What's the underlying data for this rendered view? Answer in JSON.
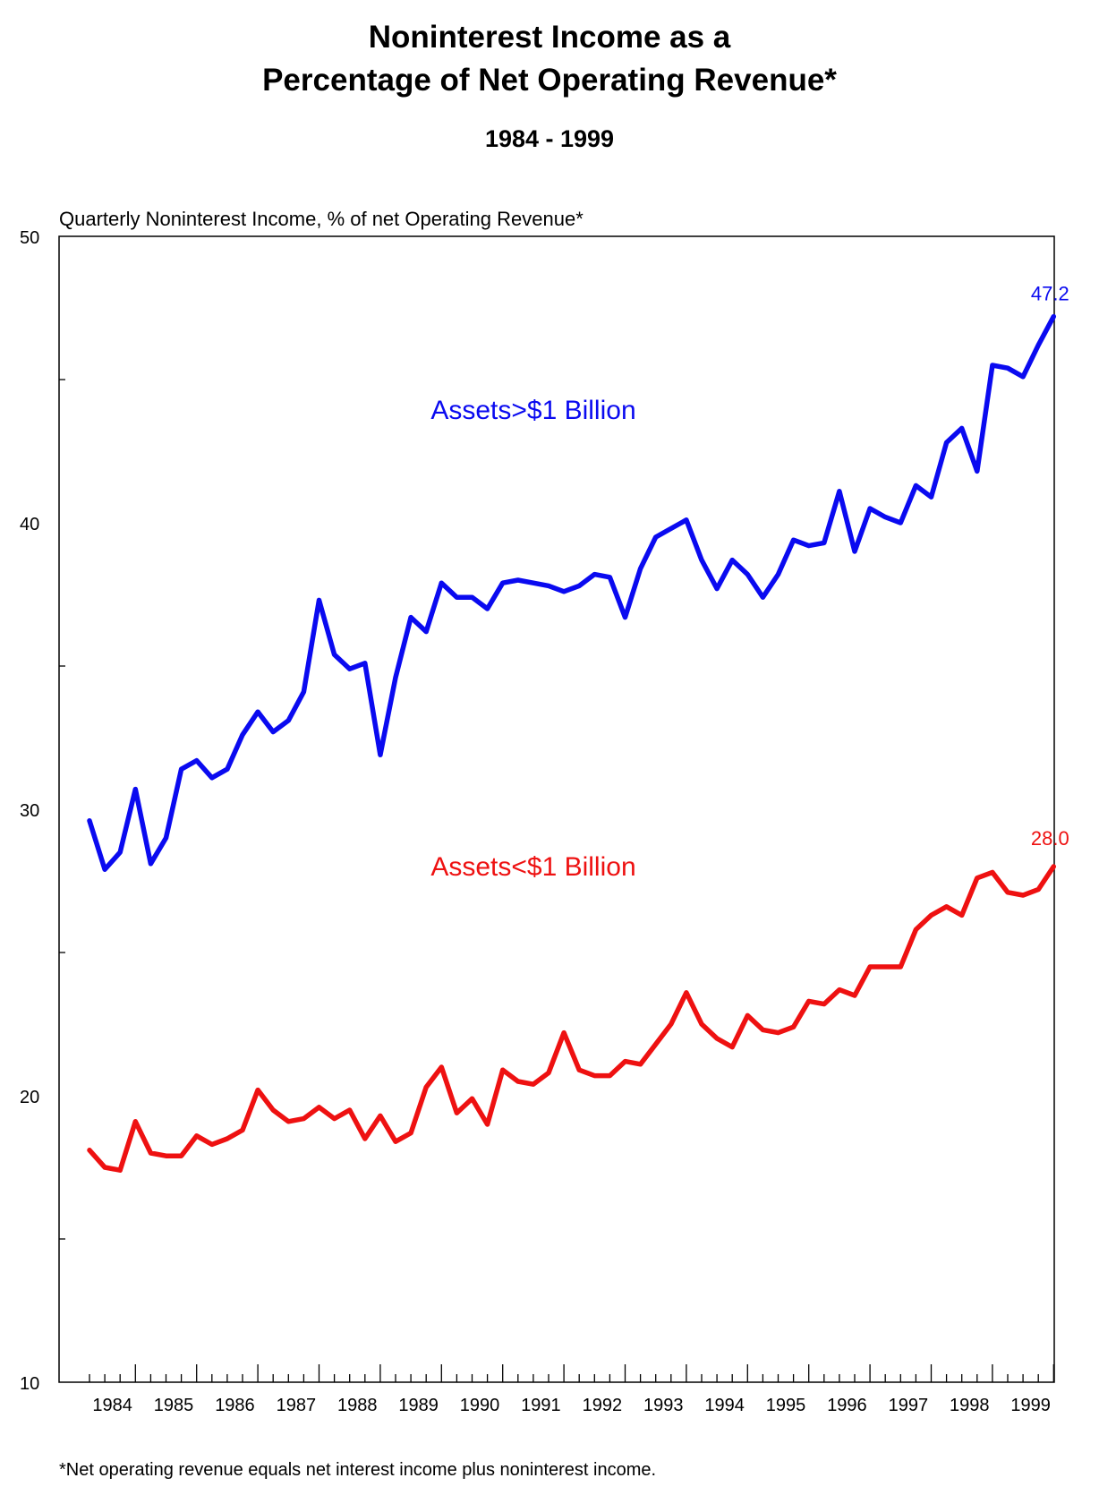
{
  "chart_data": {
    "type": "line",
    "title_line1": "Noninterest Income as a",
    "title_line2": "Percentage of Net Operating Revenue*",
    "subtitle": "1984 - 1999",
    "ylabel": "Quarterly Noninterest Income, % of net Operating Revenue*",
    "footnote": "*Net operating revenue equals net interest income plus noninterest income.",
    "ylim": [
      10,
      50
    ],
    "yticks": [
      10,
      20,
      30,
      40,
      50
    ],
    "years": [
      "1984",
      "1985",
      "1986",
      "1987",
      "1988",
      "1989",
      "1990",
      "1991",
      "1992",
      "1993",
      "1994",
      "1995",
      "1996",
      "1997",
      "1998",
      "1999"
    ],
    "series": [
      {
        "name": "Assets>$1 Billion",
        "color": "#0a0af0",
        "end_label": "47.2",
        "values": [
          29.6,
          27.9,
          28.5,
          30.7,
          28.1,
          29.0,
          31.4,
          31.7,
          31.1,
          31.4,
          32.6,
          33.4,
          32.7,
          33.1,
          34.1,
          37.3,
          35.4,
          34.9,
          35.1,
          31.9,
          34.6,
          36.7,
          36.2,
          37.9,
          37.4,
          37.4,
          37.0,
          37.9,
          38.0,
          37.9,
          37.8,
          37.6,
          37.8,
          38.2,
          38.1,
          36.7,
          38.4,
          39.5,
          39.8,
          40.1,
          38.7,
          37.7,
          38.7,
          38.2,
          37.4,
          38.2,
          39.4,
          39.2,
          39.3,
          41.1,
          39.0,
          40.5,
          40.2,
          40.0,
          41.3,
          40.9,
          42.8,
          43.3,
          41.8,
          45.5,
          45.4,
          45.1,
          46.2,
          47.2
        ]
      },
      {
        "name": "Assets<$1 Billion",
        "color": "#ee1111",
        "end_label": "28.0",
        "values": [
          18.1,
          17.5,
          17.4,
          19.1,
          18.0,
          17.9,
          17.9,
          18.6,
          18.3,
          18.5,
          18.8,
          20.2,
          19.5,
          19.1,
          19.2,
          19.6,
          19.2,
          19.5,
          18.5,
          19.3,
          18.4,
          18.7,
          20.3,
          21.0,
          19.4,
          19.9,
          19.0,
          20.9,
          20.5,
          20.4,
          20.8,
          22.2,
          20.9,
          20.7,
          20.7,
          21.2,
          21.1,
          21.8,
          22.5,
          23.6,
          22.5,
          22.0,
          21.7,
          22.8,
          22.3,
          22.2,
          22.4,
          23.3,
          23.2,
          23.7,
          23.5,
          24.5,
          24.5,
          24.5,
          25.8,
          26.3,
          26.6,
          26.3,
          27.6,
          27.8,
          27.1,
          27.0,
          27.2,
          28.0
        ]
      }
    ]
  }
}
